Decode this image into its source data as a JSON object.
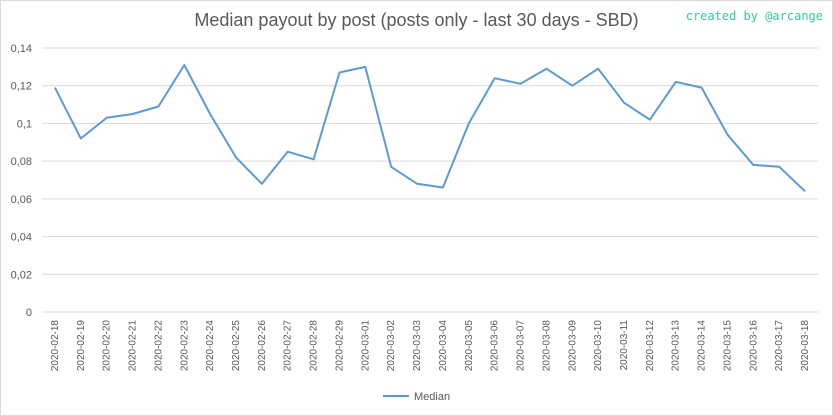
{
  "chart_data": {
    "type": "line",
    "title": "Median payout by post (posts only - last 30 days - SBD)",
    "credit": "created by @arcange",
    "xlabel": "",
    "ylabel": "",
    "ylim": [
      0,
      0.14
    ],
    "grid": true,
    "legend_position": "bottom",
    "y_ticks": [
      "0",
      "0,02",
      "0,04",
      "0,06",
      "0,08",
      "0,1",
      "0,12",
      "0,14"
    ],
    "y_tick_values": [
      0,
      0.02,
      0.04,
      0.06,
      0.08,
      0.1,
      0.12,
      0.14
    ],
    "categories": [
      "2020-02-18",
      "2020-02-19",
      "2020-02-20",
      "2020-02-21",
      "2020-02-22",
      "2020-02-23",
      "2020-02-24",
      "2020-02-25",
      "2020-02-26",
      "2020-02-27",
      "2020-02-28",
      "2020-02-29",
      "2020-03-01",
      "2020-03-02",
      "2020-03-03",
      "2020-03-04",
      "2020-03-05",
      "2020-03-06",
      "2020-03-07",
      "2020-03-08",
      "2020-03-09",
      "2020-03-10",
      "2020-03-11",
      "2020-03-12",
      "2020-03-13",
      "2020-03-14",
      "2020-03-15",
      "2020-03-16",
      "2020-03-17",
      "2020-03-18"
    ],
    "series": [
      {
        "name": "Median",
        "color": "#5b9bd5",
        "values": [
          0.119,
          0.092,
          0.103,
          0.105,
          0.109,
          0.131,
          0.105,
          0.082,
          0.068,
          0.085,
          0.081,
          0.127,
          0.13,
          0.077,
          0.068,
          0.066,
          0.1,
          0.124,
          0.121,
          0.129,
          0.12,
          0.129,
          0.111,
          0.102,
          0.122,
          0.119,
          0.094,
          0.078,
          0.077,
          0.064
        ]
      }
    ]
  }
}
